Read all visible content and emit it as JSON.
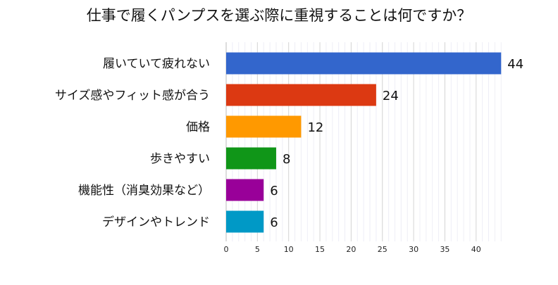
{
  "chart_data": {
    "type": "bar",
    "orientation": "horizontal",
    "title": "仕事で履くパンプスを選ぶ際に重視することは何ですか？",
    "categories": [
      "履いていて疲れない",
      "サイズ感やフィット感が合う",
      "価格",
      "歩きやすい",
      "機能性（消臭効果など）",
      "デザインやトレンド"
    ],
    "values": [
      44,
      24,
      12,
      8,
      6,
      6
    ],
    "colors": [
      "#3366cc",
      "#dc3912",
      "#ff9900",
      "#109618",
      "#990099",
      "#0099c6"
    ],
    "xlim": [
      0,
      44
    ],
    "xticks": [
      0,
      5,
      10,
      15,
      20,
      25,
      30,
      35,
      40
    ],
    "grid": true,
    "xlabel": "",
    "ylabel": ""
  }
}
